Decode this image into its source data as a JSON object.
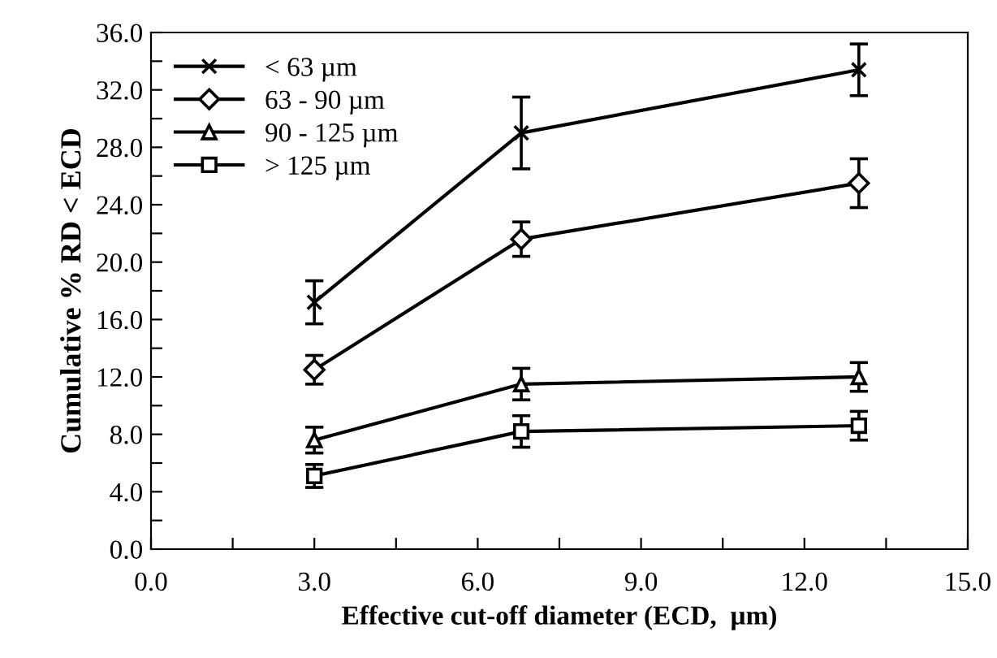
{
  "chart_data": {
    "type": "line",
    "xlabel": "Effective cut-off diameter (ECD,  µm)",
    "ylabel": "Cumulative % RD < ECD",
    "x": [
      3.0,
      6.8,
      13.0
    ],
    "series": [
      {
        "name": "< 63 µm",
        "color": "#000000",
        "marker": "cross",
        "values": [
          17.2,
          29.0,
          33.4
        ],
        "errors": [
          1.5,
          2.5,
          1.8
        ]
      },
      {
        "name": "63 - 90 µm",
        "color": "#000000",
        "marker": "diamond",
        "values": [
          12.5,
          21.6,
          25.5
        ],
        "errors": [
          1.0,
          1.2,
          1.7
        ]
      },
      {
        "name": "90 - 125 µm",
        "color": "#000000",
        "marker": "triangle",
        "values": [
          7.6,
          11.5,
          12.0
        ],
        "errors": [
          0.9,
          1.1,
          1.0
        ]
      },
      {
        "name": "> 125 µm",
        "color": "#000000",
        "marker": "square",
        "values": [
          5.1,
          8.2,
          8.6
        ],
        "errors": [
          0.8,
          1.1,
          1.0
        ]
      }
    ],
    "xlim": [
      0,
      15
    ],
    "xticks": [
      {
        "value": 0,
        "label": "0.0"
      },
      {
        "value": 1.5,
        "label": null
      },
      {
        "value": 3,
        "label": "3.0"
      },
      {
        "value": 4.5,
        "label": null
      },
      {
        "value": 6,
        "label": "6.0"
      },
      {
        "value": 7.5,
        "label": null
      },
      {
        "value": 9,
        "label": "9.0"
      },
      {
        "value": 10.5,
        "label": null
      },
      {
        "value": 12,
        "label": "12.0"
      },
      {
        "value": 13.5,
        "label": null
      },
      {
        "value": 15,
        "label": "15.0"
      }
    ],
    "ylim": [
      0,
      36
    ],
    "yticks": [
      {
        "value": 0,
        "label": "0.0"
      },
      {
        "value": 2,
        "label": null
      },
      {
        "value": 4,
        "label": "4.0"
      },
      {
        "value": 6,
        "label": null
      },
      {
        "value": 8,
        "label": "8.0"
      },
      {
        "value": 10,
        "label": null
      },
      {
        "value": 12,
        "label": "12.0"
      },
      {
        "value": 14,
        "label": null
      },
      {
        "value": 16,
        "label": "16.0"
      },
      {
        "value": 18,
        "label": null
      },
      {
        "value": 20,
        "label": "20.0"
      },
      {
        "value": 22,
        "label": null
      },
      {
        "value": 24,
        "label": "24.0"
      },
      {
        "value": 26,
        "label": null
      },
      {
        "value": 28,
        "label": "28.0"
      },
      {
        "value": 30,
        "label": null
      },
      {
        "value": 32,
        "label": "32.0"
      },
      {
        "value": 34,
        "label": null
      },
      {
        "value": 36,
        "label": "36.0"
      }
    ],
    "grid": false,
    "legend": "top left",
    "line_style": "solid"
  }
}
